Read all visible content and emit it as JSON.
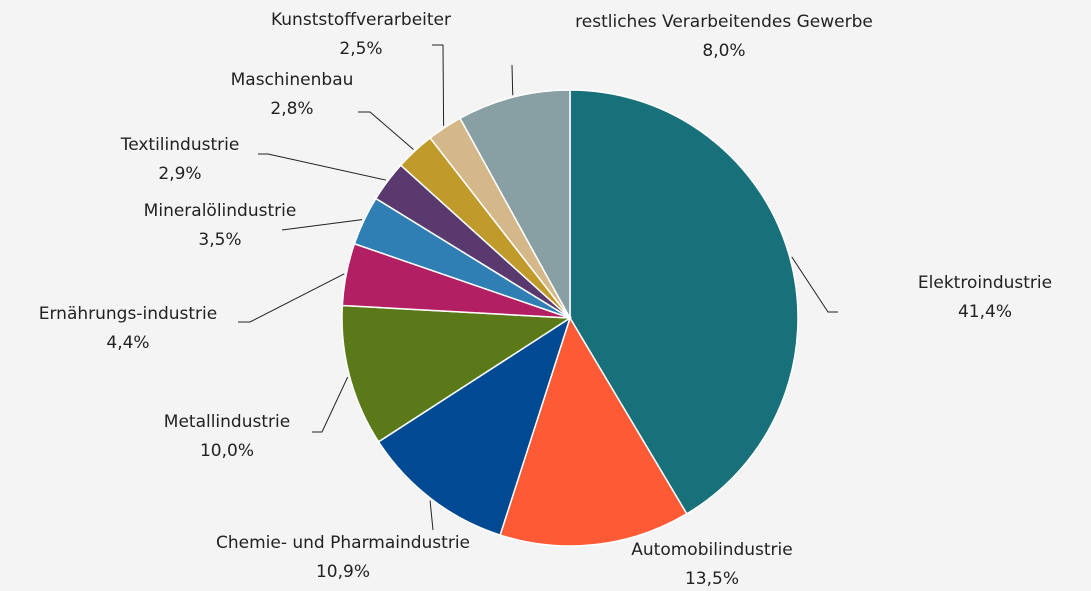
{
  "chart_data": {
    "type": "pie",
    "categories": [
      "Elektroindustrie",
      "Automobilindustrie",
      "Chemie- und Pharmaindustrie",
      "Metallindustrie",
      "Ernährungs-industrie",
      "Mineralölindustrie",
      "Textilindustrie",
      "Maschinenbau",
      "Kunststoffverarbeiter",
      "restliches Verarbeitendes Gewerbe"
    ],
    "values": [
      41.4,
      13.5,
      10.9,
      10.0,
      4.4,
      3.5,
      2.9,
      2.8,
      2.5,
      8.0
    ],
    "value_labels": [
      "41,4%",
      "13,5%",
      "10,9%",
      "10,0%",
      "4,4%",
      "3,5%",
      "2,9%",
      "2,8%",
      "2,5%",
      "8,0%"
    ],
    "colors": [
      "#17707a",
      "#ff5a36",
      "#004a93",
      "#5a7a1a",
      "#b31f63",
      "#2f7fb5",
      "#5a3a6e",
      "#c09a2a",
      "#d4b88a",
      "#88a0a4"
    ]
  }
}
